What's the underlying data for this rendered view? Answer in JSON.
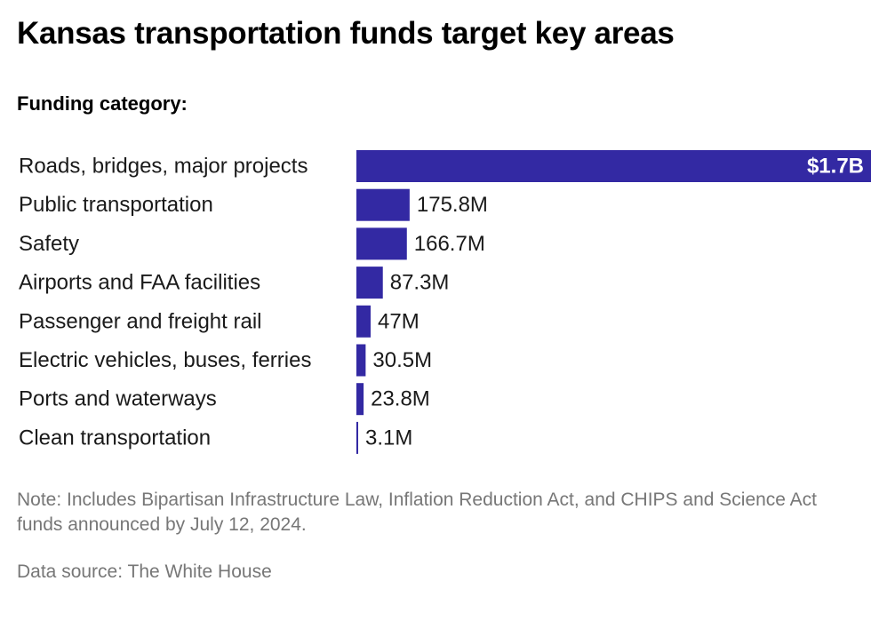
{
  "colors": {
    "bar": "#3329a3",
    "text": "#1a1a1a",
    "note": "#777777"
  },
  "chart_data": {
    "type": "bar",
    "orientation": "horizontal",
    "title": "Kansas transportation funds target key areas",
    "subtitle": "Funding category:",
    "categories": [
      "Roads, bridges, major projects",
      "Public transportation",
      "Safety",
      "Airports and FAA facilities",
      "Passenger and freight rail",
      "Electric vehicles, buses, ferries",
      "Ports and waterways",
      "Clean transportation"
    ],
    "values": [
      1700,
      175.8,
      166.7,
      87.3,
      47,
      30.5,
      23.8,
      3.1
    ],
    "value_unit": "millions of dollars",
    "data_labels": [
      "$1.7B",
      "175.8M",
      "166.7M",
      "87.3M",
      "47M",
      "30.5M",
      "23.8M",
      "3.1M"
    ],
    "xlim": [
      0,
      1700
    ],
    "grid": false,
    "legend": "none"
  },
  "footer": {
    "note": "Note: Includes Bipartisan Infrastructure Law, Inflation Reduction Act, and CHIPS and Science Act funds announced by July 12, 2024.",
    "source": "Data source: The White House"
  }
}
